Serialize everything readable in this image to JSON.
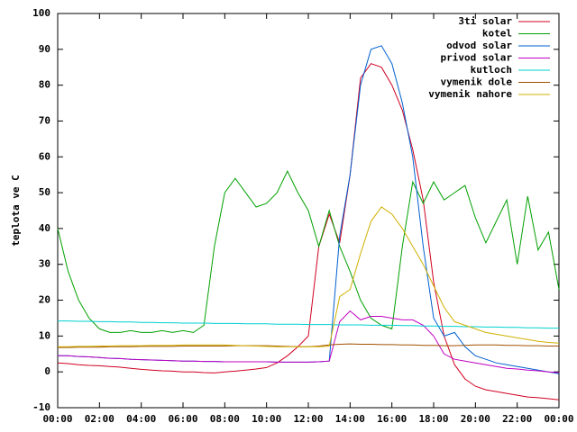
{
  "chart_data": {
    "type": "line",
    "ylabel": "teplota ve C",
    "xlim": [
      0,
      24
    ],
    "xticks": [
      {
        "value": 0,
        "label": "00:00"
      },
      {
        "value": 2,
        "label": "02:00"
      },
      {
        "value": 4,
        "label": "04:00"
      },
      {
        "value": 6,
        "label": "06:00"
      },
      {
        "value": 8,
        "label": "08:00"
      },
      {
        "value": 10,
        "label": "10:00"
      },
      {
        "value": 12,
        "label": "12:00"
      },
      {
        "value": 14,
        "label": "14:00"
      },
      {
        "value": 16,
        "label": "16:00"
      },
      {
        "value": 18,
        "label": "18:00"
      },
      {
        "value": 20,
        "label": "20:00"
      },
      {
        "value": 22,
        "label": "22:00"
      },
      {
        "value": 24,
        "label": "00:00"
      }
    ],
    "ylim": [
      -10,
      100
    ],
    "yticks": [
      -10,
      0,
      10,
      20,
      30,
      40,
      50,
      60,
      70,
      80,
      90,
      100
    ],
    "grid": false,
    "legend": "top-right",
    "x": [
      0,
      0.5,
      1,
      1.5,
      2,
      2.5,
      3,
      3.5,
      4,
      4.5,
      5,
      5.5,
      6,
      6.5,
      7,
      7.5,
      8,
      8.5,
      9,
      9.5,
      10,
      10.5,
      11,
      11.5,
      12,
      12.5,
      13,
      13.5,
      14,
      14.5,
      15,
      15.5,
      16,
      16.5,
      17,
      17.5,
      18,
      18.5,
      19,
      19.5,
      20,
      20.5,
      21,
      21.5,
      22,
      22.5,
      23,
      23.5,
      24
    ],
    "series": [
      {
        "name": "3ti solar",
        "color": "#d00020",
        "values": [
          2.5,
          2.3,
          2,
          1.8,
          1.7,
          1.5,
          1.3,
          1,
          0.7,
          0.5,
          0.3,
          0.2,
          0,
          0,
          -0.2,
          -0.3,
          0,
          0.2,
          0.5,
          0.8,
          1.2,
          2.5,
          4.5,
          7,
          10,
          35,
          44,
          36,
          55,
          82,
          86,
          85,
          80,
          73,
          62,
          48,
          25,
          10,
          2,
          -2,
          -4,
          -5,
          -5.5,
          -6,
          -6.5,
          -7,
          -7.2,
          -7.5,
          -7.8
        ]
      },
      {
        "name": "kotel",
        "color": "#00a000",
        "values": [
          40,
          28,
          20,
          15,
          12,
          11,
          11,
          11.5,
          11,
          11,
          11.5,
          11,
          11.5,
          11,
          13,
          35,
          50,
          54,
          50,
          46,
          47,
          50,
          56,
          50,
          45,
          35,
          45,
          35,
          28,
          20,
          15,
          13,
          12,
          35,
          53,
          47,
          53,
          48,
          50,
          52,
          43,
          36,
          42,
          48,
          30,
          49,
          34,
          39,
          23
        ]
      },
      {
        "name": "odvod solar",
        "color": "#0060d0",
        "values": [
          4.5,
          4.5,
          4.3,
          4.2,
          4.0,
          3.8,
          3.7,
          3.5,
          3.4,
          3.3,
          3.2,
          3.1,
          3.0,
          3.0,
          2.9,
          2.9,
          2.8,
          2.8,
          2.8,
          2.8,
          2.8,
          2.7,
          2.7,
          2.7,
          2.7,
          2.8,
          3.0,
          38,
          55,
          80,
          90,
          91,
          86,
          75,
          60,
          35,
          15,
          10,
          11,
          7,
          4.5,
          3.5,
          2.5,
          2,
          1.5,
          1,
          0.5,
          0,
          -0.5
        ]
      },
      {
        "name": "privod solar",
        "color": "#c000c0",
        "values": [
          4.5,
          4.5,
          4.3,
          4.2,
          4.0,
          3.8,
          3.7,
          3.5,
          3.4,
          3.3,
          3.2,
          3.1,
          3.0,
          3.0,
          2.9,
          2.9,
          2.8,
          2.8,
          2.8,
          2.8,
          2.8,
          2.7,
          2.7,
          2.7,
          2.7,
          2.8,
          3.0,
          14,
          17,
          14.5,
          15.5,
          15.5,
          15,
          14.5,
          14.5,
          13,
          10,
          5,
          3.5,
          3,
          2.5,
          2,
          1.5,
          1,
          0.8,
          0.5,
          0.3,
          0,
          -0.2
        ]
      },
      {
        "name": "kutloch",
        "color": "#00d0d0",
        "values": [
          14.2,
          14.2,
          14.1,
          14.1,
          14.0,
          14.0,
          13.9,
          13.9,
          13.8,
          13.8,
          13.7,
          13.7,
          13.6,
          13.6,
          13.6,
          13.5,
          13.5,
          13.5,
          13.4,
          13.4,
          13.4,
          13.3,
          13.3,
          13.3,
          13.2,
          13.2,
          13.2,
          13.1,
          13.1,
          13.1,
          13.0,
          13.0,
          13.0,
          12.9,
          12.9,
          12.8,
          12.8,
          12.7,
          12.7,
          12.6,
          12.6,
          12.5,
          12.5,
          12.4,
          12.4,
          12.3,
          12.3,
          12.2,
          12.2
        ]
      },
      {
        "name": "vymenik dole",
        "color": "#a05000",
        "values": [
          6.8,
          6.8,
          6.9,
          6.9,
          6.9,
          7.0,
          7.0,
          7.0,
          7.1,
          7.1,
          7.1,
          7.1,
          7.2,
          7.2,
          7.2,
          7.2,
          7.2,
          7.3,
          7.3,
          7.3,
          7.3,
          7.2,
          7.1,
          7.0,
          7.0,
          7.2,
          7.5,
          7.7,
          7.8,
          7.7,
          7.7,
          7.6,
          7.6,
          7.5,
          7.5,
          7.4,
          7.4,
          7.3,
          7.3,
          7.4,
          7.5,
          7.5,
          7.5,
          7.4,
          7.4,
          7.3,
          7.3,
          7.2,
          7.2
        ]
      },
      {
        "name": "vymenik nahore",
        "color": "#d0b000",
        "values": [
          7.0,
          7.0,
          7.1,
          7.1,
          7.2,
          7.2,
          7.3,
          7.3,
          7.3,
          7.4,
          7.4,
          7.4,
          7.5,
          7.5,
          7.5,
          7.5,
          7.5,
          7.4,
          7.3,
          7.2,
          7.1,
          7.0,
          7.0,
          7.0,
          7.0,
          7.0,
          7.2,
          21,
          23,
          33,
          42,
          46,
          44,
          40,
          35,
          30,
          24,
          18,
          14,
          13,
          12,
          11,
          10.5,
          10,
          9.5,
          9,
          8.5,
          8.2,
          8
        ]
      }
    ]
  }
}
